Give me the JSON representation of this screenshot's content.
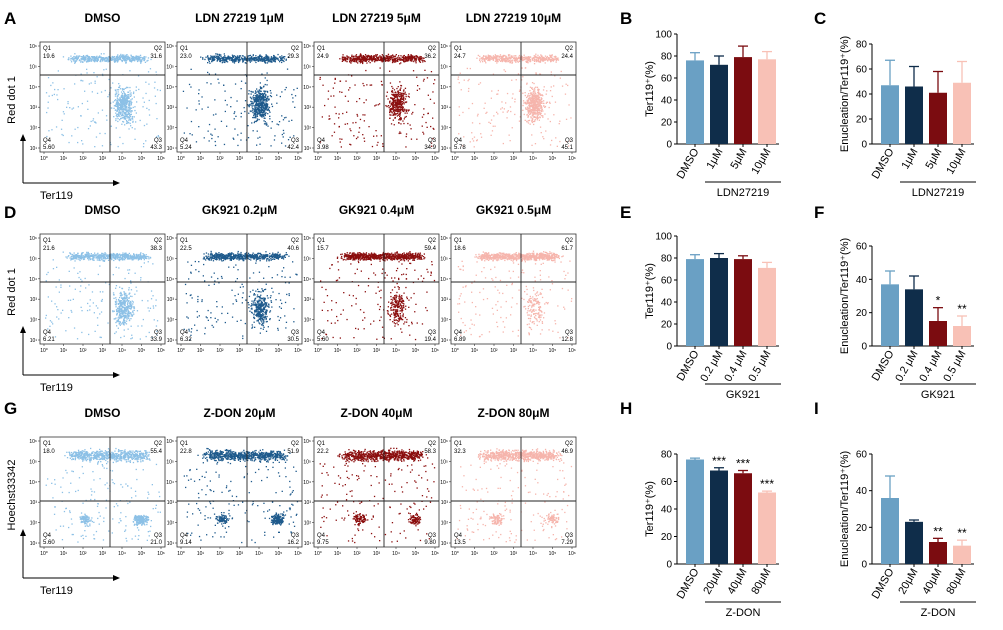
{
  "figure": {
    "rows": [
      {
        "letter": "A",
        "ylabel": "Red dot 1",
        "xlabel": "Ter119",
        "plots": [
          {
            "title": "DMSO",
            "q1": "19.6",
            "q2": "31.6",
            "q3": "43.3",
            "q4": "5.60",
            "color": "#8cc0e6"
          },
          {
            "title": "LDN 27219 1μM",
            "q1": "23.0",
            "q2": "29.3",
            "q3": "42.4",
            "q4": "5.24",
            "color": "#1e5a8c"
          },
          {
            "title": "LDN 27219 5μM",
            "q1": "24.9",
            "q2": "36.2",
            "q3": "34.9",
            "q4": "3.98",
            "color": "#8b0e0e"
          },
          {
            "title": "LDN 27219 10μM",
            "q1": "24.7",
            "q2": "24.4",
            "q3": "45.1",
            "q4": "5.78",
            "color": "#f6b5ac"
          }
        ]
      },
      {
        "letter": "D",
        "ylabel": "Red dot 1",
        "xlabel": "Ter119",
        "plots": [
          {
            "title": "DMSO",
            "q1": "21.6",
            "q2": "38.3",
            "q3": "33.9",
            "q4": "6.21",
            "color": "#8cc0e6"
          },
          {
            "title": "GK921 0.2μM",
            "q1": "22.5",
            "q2": "40.6",
            "q3": "30.5",
            "q4": "6.32",
            "color": "#1e5a8c"
          },
          {
            "title": "GK921 0.4μM",
            "q1": "15.7",
            "q2": "59.4",
            "q3": "19.4",
            "q4": "5.60",
            "color": "#8b0e0e"
          },
          {
            "title": "GK921 0.5μM",
            "q1": "18.6",
            "q2": "61.7",
            "q3": "12.8",
            "q4": "6.89",
            "color": "#f6b5ac"
          }
        ]
      },
      {
        "letter": "G",
        "ylabel": "Hoechst33342",
        "xlabel": "Ter119",
        "plots": [
          {
            "title": "DMSO",
            "q1": "18.0",
            "q2": "55.4",
            "q3": "21.0",
            "q4": "5.60",
            "color": "#8cc0e6"
          },
          {
            "title": "Z-DON 20μM",
            "q1": "22.8",
            "q2": "51.9",
            "q3": "16.2",
            "q4": "9.14",
            "color": "#1e5a8c"
          },
          {
            "title": "Z-DON 40μM",
            "q1": "22.2",
            "q2": "58.3",
            "q3": "9.80",
            "q4": "9.75",
            "color": "#8b0e0e"
          },
          {
            "title": "Z-DON 80μM",
            "q1": "32.3",
            "q2": "46.9",
            "q3": "7.29",
            "q4": "13.5",
            "color": "#f6b5ac"
          }
        ]
      }
    ],
    "quadrant_labels": [
      "Q1",
      "Q2",
      "Q3",
      "Q4"
    ],
    "flow_ytick_labels": [
      "10⁶",
      "10⁵",
      "10⁴",
      "10³",
      "10²",
      "10¹"
    ],
    "flow_xtick_labels": [
      "10⁰",
      "10¹",
      "10²",
      "10³",
      "10⁴",
      "10⁵",
      "10⁶"
    ]
  },
  "chart_data": [
    {
      "panel": "B",
      "type": "bar",
      "title": "",
      "ylabel": "Ter119⁺(%)",
      "ylim": [
        0,
        100
      ],
      "yticks": [
        0,
        20,
        40,
        60,
        80,
        100
      ],
      "categories": [
        "DMSO",
        "1μM",
        "5μM",
        "10μM"
      ],
      "values": [
        76,
        72,
        79,
        77
      ],
      "errors": [
        7,
        8,
        10,
        7
      ],
      "stars": [
        "",
        "",
        "",
        ""
      ],
      "group_label": "LDN27219",
      "colors": [
        "#6aa0c4",
        "#0f2d4a",
        "#7b0c10",
        "#f8c1b6"
      ]
    },
    {
      "panel": "C",
      "type": "bar",
      "title": "",
      "ylabel": "Enucleation/Ter119⁺(%)",
      "ylim": [
        0,
        80
      ],
      "yticks": [
        0,
        20,
        40,
        60,
        80
      ],
      "categories": [
        "DMSO",
        "1μM",
        "5μM",
        "10μM"
      ],
      "values": [
        47,
        46,
        41,
        49
      ],
      "errors": [
        20,
        16,
        17,
        17
      ],
      "stars": [
        "",
        "",
        "",
        ""
      ],
      "group_label": "LDN27219",
      "colors": [
        "#6aa0c4",
        "#0f2d4a",
        "#7b0c10",
        "#f8c1b6"
      ]
    },
    {
      "panel": "E",
      "type": "bar",
      "title": "",
      "ylabel": "Ter119⁺(%)",
      "ylim": [
        0,
        100
      ],
      "yticks": [
        0,
        20,
        40,
        60,
        80,
        100
      ],
      "categories": [
        "DMSO",
        "0.2 μM",
        "0.4 μM",
        "0.5 μM"
      ],
      "values": [
        79,
        80,
        79,
        71
      ],
      "errors": [
        4,
        4,
        3,
        5
      ],
      "stars": [
        "",
        "",
        "",
        ""
      ],
      "group_label": "GK921",
      "colors": [
        "#6aa0c4",
        "#0f2d4a",
        "#7b0c10",
        "#f8c1b6"
      ]
    },
    {
      "panel": "F",
      "type": "bar",
      "title": "",
      "ylabel": "Enucleation/Ter119⁺(%)",
      "ylim": [
        0,
        60
      ],
      "yticks": [
        0,
        20,
        40,
        60
      ],
      "categories": [
        "DMSO",
        "0.2 μM",
        "0.4 μM",
        "0.5 μM"
      ],
      "values": [
        37,
        34,
        15,
        12
      ],
      "errors": [
        8,
        8,
        8,
        6
      ],
      "stars": [
        "",
        "",
        "*",
        "**"
      ],
      "group_label": "GK921",
      "colors": [
        "#6aa0c4",
        "#0f2d4a",
        "#7b0c10",
        "#f8c1b6"
      ]
    },
    {
      "panel": "H",
      "type": "bar",
      "title": "",
      "ylabel": "Ter119⁺(%)",
      "ylim": [
        0,
        80
      ],
      "yticks": [
        0,
        20,
        40,
        60,
        80
      ],
      "categories": [
        "DMSO",
        "20μM",
        "40μM",
        "80μM"
      ],
      "values": [
        76,
        68,
        66,
        52
      ],
      "errors": [
        1,
        2,
        2,
        1
      ],
      "stars": [
        "",
        "***",
        "***",
        "***"
      ],
      "group_label": "Z-DON",
      "colors": [
        "#6aa0c4",
        "#0f2d4a",
        "#7b0c10",
        "#f8c1b6"
      ]
    },
    {
      "panel": "I",
      "type": "bar",
      "title": "",
      "ylabel": "Enucleation/Ter119⁺(%)",
      "ylim": [
        0,
        60
      ],
      "yticks": [
        0,
        20,
        40,
        60
      ],
      "categories": [
        "DMSO",
        "20μM",
        "40μM",
        "80μM"
      ],
      "values": [
        36,
        23,
        12,
        10
      ],
      "errors": [
        12,
        1,
        2,
        3
      ],
      "stars": [
        "",
        "",
        "**",
        "**"
      ],
      "group_label": "Z-DON",
      "colors": [
        "#6aa0c4",
        "#0f2d4a",
        "#7b0c10",
        "#f8c1b6"
      ]
    }
  ]
}
